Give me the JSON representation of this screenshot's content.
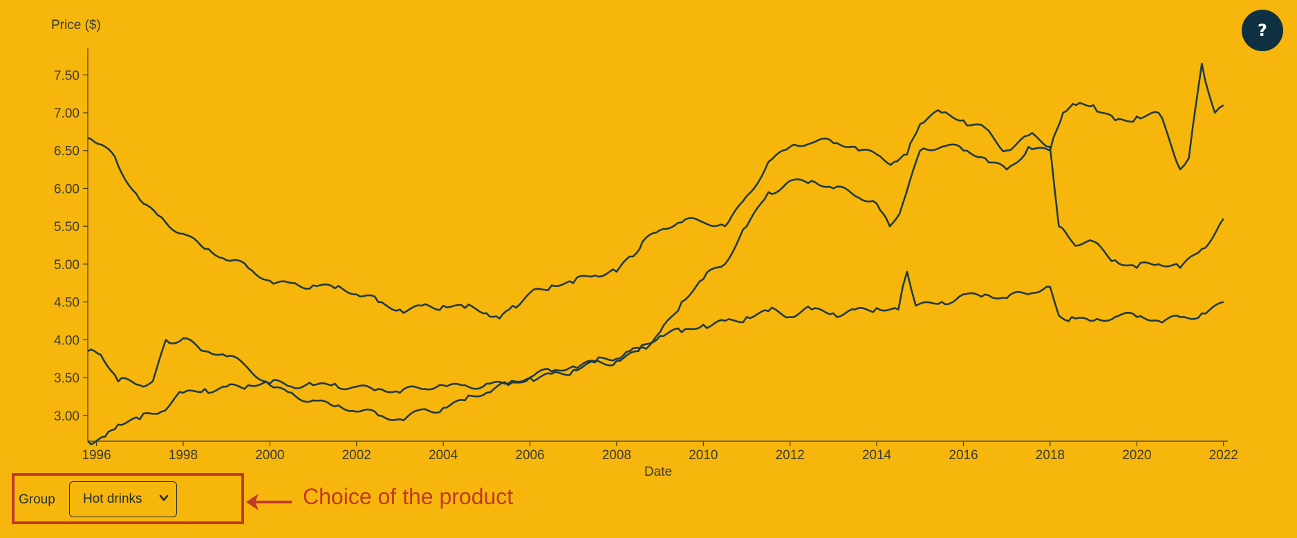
{
  "help": {
    "label": "?"
  },
  "controls": {
    "group_label": "Group",
    "group_selected": "Hot drinks"
  },
  "annotation": {
    "text": "Choice of the product"
  },
  "colors": {
    "background": "#F6B60B",
    "line": "#1F3A46",
    "axis": "#3a3a3a",
    "help_button": "#0E3041",
    "annotation": "#C0392B"
  },
  "chart_data": {
    "type": "line",
    "ylabel": "Price ($)",
    "xlabel": "Date",
    "xlim": [
      1995.8,
      2022.1
    ],
    "ylim": [
      2.66,
      7.85
    ],
    "yticks": [
      "3.00",
      "3.50",
      "4.00",
      "4.50",
      "5.00",
      "5.50",
      "6.00",
      "6.50",
      "7.00",
      "7.50"
    ],
    "xticks": [
      "1996",
      "1998",
      "2000",
      "2002",
      "2004",
      "2006",
      "2008",
      "2010",
      "2012",
      "2014",
      "2016",
      "2018",
      "2020",
      "2022"
    ],
    "grid": false,
    "series": [
      {
        "x": [
          1995.8,
          1996.2,
          1996.5,
          1997.0,
          1997.5,
          1998.0,
          1998.5,
          1999.0,
          1999.5,
          2000.0,
          2000.5,
          2001.0,
          2001.5,
          2002.0,
          2002.5,
          2003.0,
          2003.5,
          2004.0,
          2004.5,
          2005.0,
          2005.3,
          2005.6,
          2006.0,
          2006.5,
          2007.0,
          2007.5,
          2008.0,
          2008.3,
          2008.6,
          2009.0,
          2009.5,
          2010.0,
          2010.5,
          2011.0,
          2011.5,
          2012.0,
          2012.5,
          2013.0,
          2013.5,
          2014.0,
          2014.4,
          2014.7,
          2015.0,
          2015.5,
          2016.0,
          2016.5,
          2017.0,
          2017.5,
          2018.0,
          2018.2,
          2018.5,
          2019.0,
          2019.5,
          2020.0,
          2020.5,
          2021.0,
          2021.5,
          2022.0
        ],
        "values": [
          6.67,
          6.55,
          6.3,
          5.85,
          5.62,
          5.4,
          5.2,
          5.05,
          4.95,
          4.78,
          4.75,
          4.72,
          4.68,
          4.6,
          4.5,
          4.4,
          4.45,
          4.45,
          4.42,
          4.35,
          4.28,
          4.45,
          4.62,
          4.72,
          4.75,
          4.85,
          4.9,
          5.1,
          5.3,
          5.45,
          5.55,
          5.55,
          5.5,
          5.9,
          6.35,
          6.55,
          6.6,
          6.6,
          6.55,
          6.45,
          6.35,
          6.45,
          6.85,
          7.0,
          6.9,
          6.8,
          6.5,
          6.7,
          6.55,
          5.5,
          5.3,
          5.3,
          5.05,
          4.95,
          5.0,
          4.95,
          5.2,
          5.6
        ]
      },
      {
        "x": [
          1995.8,
          1996.1,
          1996.5,
          1997.0,
          1997.3,
          1997.6,
          1998.0,
          1998.5,
          1999.0,
          1999.5,
          2000.0,
          2000.5,
          2001.0,
          2001.5,
          2002.0,
          2002.5,
          2003.0,
          2003.5,
          2004.0,
          2004.5,
          2005.0,
          2005.5,
          2006.0,
          2006.5,
          2007.0,
          2007.5,
          2008.0,
          2008.3,
          2008.6,
          2009.0,
          2009.5,
          2010.0,
          2010.5,
          2011.0,
          2011.5,
          2012.0,
          2012.5,
          2013.0,
          2013.5,
          2014.0,
          2014.3,
          2014.6,
          2015.0,
          2015.5,
          2016.0,
          2016.5,
          2017.0,
          2017.5,
          2018.0,
          2018.3,
          2018.6,
          2019.0,
          2019.5,
          2020.0,
          2020.5,
          2021.0,
          2021.2,
          2021.5,
          2021.8,
          2022.0
        ],
        "values": [
          3.85,
          3.8,
          3.45,
          3.4,
          3.45,
          4.0,
          4.02,
          3.85,
          3.78,
          3.62,
          3.4,
          3.3,
          3.2,
          3.12,
          3.05,
          3.0,
          2.95,
          3.08,
          3.1,
          3.2,
          3.3,
          3.4,
          3.5,
          3.55,
          3.6,
          3.7,
          3.75,
          3.85,
          3.9,
          4.1,
          4.5,
          4.8,
          5.0,
          5.5,
          5.95,
          6.1,
          6.1,
          6.0,
          5.9,
          5.8,
          5.5,
          5.8,
          6.5,
          6.55,
          6.5,
          6.4,
          6.25,
          6.55,
          6.5,
          7.0,
          7.1,
          7.1,
          6.9,
          6.95,
          7.0,
          6.25,
          6.4,
          7.65,
          7.0,
          7.1
        ]
      },
      {
        "x": [
          1995.8,
          1996.2,
          1996.5,
          1997.0,
          1997.5,
          1998.0,
          1998.5,
          1999.0,
          1999.5,
          2000.0,
          2000.5,
          2001.0,
          2001.5,
          2002.0,
          2002.5,
          2003.0,
          2003.5,
          2004.0,
          2004.5,
          2005.0,
          2005.5,
          2006.0,
          2006.5,
          2007.0,
          2007.5,
          2008.0,
          2008.5,
          2009.0,
          2009.5,
          2010.0,
          2010.5,
          2011.0,
          2011.5,
          2012.0,
          2012.5,
          2013.0,
          2013.5,
          2014.0,
          2014.5,
          2014.7,
          2014.9,
          2015.5,
          2016.0,
          2016.5,
          2017.0,
          2017.5,
          2018.0,
          2018.2,
          2018.5,
          2019.0,
          2019.5,
          2020.0,
          2020.5,
          2021.0,
          2021.5,
          2022.0
        ],
        "values": [
          2.66,
          2.72,
          2.88,
          2.95,
          3.05,
          3.3,
          3.35,
          3.38,
          3.4,
          3.42,
          3.38,
          3.4,
          3.42,
          3.38,
          3.35,
          3.3,
          3.35,
          3.4,
          3.4,
          3.42,
          3.42,
          3.5,
          3.58,
          3.65,
          3.72,
          3.72,
          3.85,
          4.05,
          4.1,
          4.2,
          4.25,
          4.3,
          4.38,
          4.3,
          4.4,
          4.35,
          4.4,
          4.42,
          4.4,
          4.9,
          4.45,
          4.5,
          4.6,
          4.6,
          4.55,
          4.6,
          4.7,
          4.32,
          4.3,
          4.25,
          4.3,
          4.3,
          4.25,
          4.3,
          4.35,
          4.5
        ]
      }
    ]
  }
}
